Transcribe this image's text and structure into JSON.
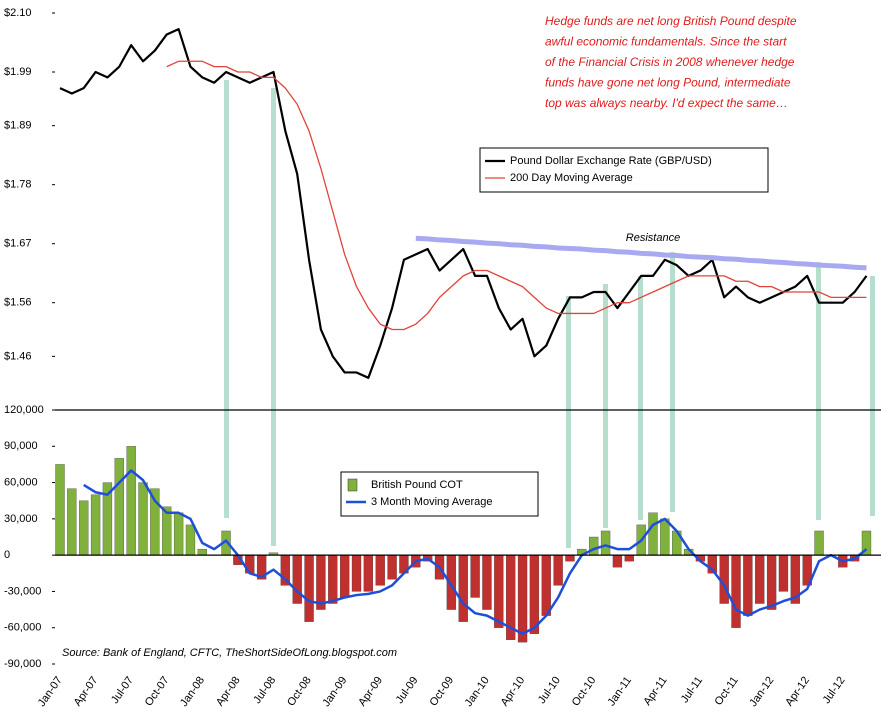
{
  "chart_data": [
    {
      "type": "line",
      "annotation_lines": [
        "Hedge funds are net long British Pound despite",
        "awful economic fundamentals. Since the start",
        "of the Financial Crisis in 2008 whenever hedge",
        "funds have gone net long Pound, intermediate",
        "top was always nearby. I'd expect the same…"
      ],
      "ylim": [
        1.36,
        2.1
      ],
      "yticks": [
        {
          "value": 2.1,
          "label": "$2.10"
        },
        {
          "value": 1.99,
          "label": "$1.99"
        },
        {
          "value": 1.89,
          "label": "$1.89"
        },
        {
          "value": 1.78,
          "label": "$1.78"
        },
        {
          "value": 1.67,
          "label": "$1.67"
        },
        {
          "value": 1.56,
          "label": "$1.56"
        },
        {
          "value": 1.46,
          "label": "$1.46"
        }
      ],
      "series": [
        {
          "name": "Pound Dollar Exchange Rate (GBP/USD)",
          "color": "#000000",
          "width": 2.2,
          "values": [
            1.96,
            1.95,
            1.96,
            1.99,
            1.98,
            2.0,
            2.04,
            2.01,
            2.03,
            2.06,
            2.07,
            2.0,
            1.98,
            1.97,
            1.99,
            1.98,
            1.97,
            1.98,
            1.99,
            1.88,
            1.8,
            1.64,
            1.51,
            1.46,
            1.43,
            1.43,
            1.42,
            1.48,
            1.55,
            1.64,
            1.65,
            1.66,
            1.62,
            1.64,
            1.66,
            1.61,
            1.61,
            1.55,
            1.51,
            1.53,
            1.46,
            1.48,
            1.53,
            1.57,
            1.57,
            1.58,
            1.58,
            1.55,
            1.58,
            1.61,
            1.61,
            1.64,
            1.63,
            1.61,
            1.62,
            1.64,
            1.57,
            1.59,
            1.57,
            1.56,
            1.57,
            1.58,
            1.59,
            1.61,
            1.56,
            1.56,
            1.56,
            1.58,
            1.61
          ]
        },
        {
          "name": "200 Day Moving Average",
          "color": "#e0443a",
          "width": 1.3,
          "values": [
            null,
            null,
            null,
            null,
            null,
            null,
            null,
            null,
            null,
            2.0,
            2.01,
            2.01,
            2.01,
            2.0,
            2.0,
            1.99,
            1.99,
            1.98,
            1.98,
            1.96,
            1.93,
            1.88,
            1.81,
            1.73,
            1.65,
            1.59,
            1.55,
            1.52,
            1.51,
            1.51,
            1.52,
            1.54,
            1.57,
            1.59,
            1.61,
            1.62,
            1.62,
            1.61,
            1.6,
            1.59,
            1.57,
            1.55,
            1.54,
            1.54,
            1.54,
            1.54,
            1.55,
            1.56,
            1.56,
            1.57,
            1.58,
            1.59,
            1.6,
            1.61,
            1.61,
            1.61,
            1.61,
            1.6,
            1.6,
            1.59,
            1.59,
            1.58,
            1.58,
            1.58,
            1.58,
            1.57,
            1.57,
            1.57,
            1.57
          ]
        },
        {
          "name": "Resistance",
          "color": "#a9a9f2",
          "width": 5,
          "in_legend": false,
          "values": [
            null,
            null,
            null,
            null,
            null,
            null,
            null,
            null,
            null,
            null,
            null,
            null,
            null,
            null,
            null,
            null,
            null,
            null,
            null,
            null,
            null,
            null,
            null,
            null,
            null,
            null,
            null,
            null,
            null,
            null,
            1.68,
            1.679,
            1.677,
            1.676,
            1.674,
            1.673,
            1.671,
            1.67,
            1.668,
            1.667,
            1.665,
            1.664,
            1.662,
            1.661,
            1.66,
            1.658,
            1.657,
            1.655,
            1.654,
            1.652,
            1.651,
            1.649,
            1.648,
            1.646,
            1.645,
            1.644,
            1.642,
            1.641,
            1.639,
            1.638,
            1.636,
            1.635,
            1.633,
            1.632,
            1.63,
            1.629,
            1.628,
            1.626,
            1.625
          ]
        }
      ]
    },
    {
      "type": "bar",
      "source": "Source: Bank of England, CFTC, TheShortSideOfLong.blogspot.com",
      "categories": [
        "Jan-07",
        null,
        null,
        "Apr-07",
        null,
        null,
        "Jul-07",
        null,
        null,
        "Oct-07",
        null,
        null,
        "Jan-08",
        null,
        null,
        "Apr-08",
        null,
        null,
        "Jul-08",
        null,
        null,
        "Oct-08",
        null,
        null,
        "Jan-09",
        null,
        null,
        "Apr-09",
        null,
        null,
        "Jul-09",
        null,
        null,
        "Oct-09",
        null,
        null,
        "Jan-10",
        null,
        null,
        "Apr-10",
        null,
        null,
        "Jul-10",
        null,
        null,
        "Oct-10",
        null,
        null,
        "Jan-11",
        null,
        null,
        "Apr-11",
        null,
        null,
        "Jul-11",
        null,
        null,
        "Oct-11",
        null,
        null,
        "Jan-12",
        null,
        null,
        "Apr-12",
        null,
        null,
        "Jul-12",
        null,
        null
      ],
      "ylim": [
        -90000,
        120000
      ],
      "yticks": [
        {
          "value": 120000,
          "label": "120,000"
        },
        {
          "value": 90000,
          "label": "90,000"
        },
        {
          "value": 60000,
          "label": "60,000"
        },
        {
          "value": 30000,
          "label": "30,000"
        },
        0,
        {
          "value": -30000,
          "label": "-30,000"
        },
        {
          "value": -60000,
          "label": "-60,000"
        },
        {
          "value": -90000,
          "label": "-90,000"
        }
      ],
      "series": [
        {
          "name": "British Pound COT",
          "type": "bar",
          "color": "#7fb13c",
          "negative_color": "#c0302f",
          "values": [
            75000,
            55000,
            45000,
            50000,
            60000,
            80000,
            90000,
            60000,
            55000,
            40000,
            35000,
            25000,
            5000,
            0,
            20000,
            -8000,
            -15000,
            -20000,
            2000,
            -25000,
            -40000,
            -55000,
            -45000,
            -40000,
            -35000,
            -30000,
            -30000,
            -25000,
            -20000,
            -15000,
            -10000,
            -5000,
            -20000,
            -45000,
            -55000,
            -35000,
            -45000,
            -60000,
            -70000,
            -72000,
            -65000,
            -50000,
            -25000,
            -5000,
            5000,
            15000,
            20000,
            -10000,
            -5000,
            25000,
            35000,
            30000,
            20000,
            5000,
            -5000,
            -15000,
            -40000,
            -60000,
            -50000,
            -40000,
            -45000,
            -30000,
            -40000,
            -25000,
            20000,
            0,
            -10000,
            -5000,
            20000
          ]
        },
        {
          "name": "3 Month Moving Average",
          "type": "line",
          "color": "#1f4fd8",
          "values": [
            null,
            null,
            58000,
            52000,
            50000,
            60000,
            70000,
            62000,
            45000,
            35000,
            35000,
            30000,
            10000,
            5000,
            12000,
            0,
            -15000,
            -18000,
            -12000,
            -20000,
            -30000,
            -38000,
            -40000,
            -38000,
            -35000,
            -33000,
            -32000,
            -30000,
            -25000,
            -15000,
            -5000,
            -3000,
            -10000,
            -25000,
            -40000,
            -48000,
            -50000,
            -55000,
            -60000,
            -65000,
            -60000,
            -50000,
            -35000,
            -15000,
            0,
            5000,
            8000,
            5000,
            5000,
            12000,
            25000,
            30000,
            20000,
            5000,
            -5000,
            -12000,
            -25000,
            -45000,
            -50000,
            -45000,
            -42000,
            -38000,
            -35000,
            -28000,
            -5000,
            0,
            -5000,
            -3000,
            5000
          ]
        }
      ]
    }
  ]
}
